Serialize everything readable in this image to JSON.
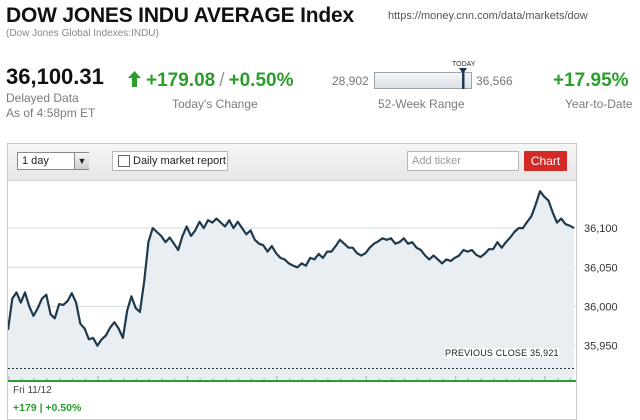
{
  "header": {
    "title": "DOW JONES INDU AVERAGE Index",
    "subtitle": "(Dow Jones Global Indexes:INDU)",
    "url": "https://money.cnn.com/data/markets/dow"
  },
  "quote": {
    "price": "36,100.31",
    "delayed": "Delayed Data",
    "as_of": "As of 4:58pm ET",
    "change": "+179.08",
    "change_pct": "+0.50%",
    "change_label": "Today's Change",
    "range_low": "28,902",
    "range_high": "36,566",
    "range_today_marker": "TODAY",
    "range_label": "52-Week Range",
    "ytd": "+17.95%",
    "ytd_label": "Year-to-Date"
  },
  "toolbar": {
    "period": "1 day",
    "daily_report": "Daily market report",
    "ticker_placeholder": "Add ticker",
    "chart_button": "Chart"
  },
  "chart_footer": {
    "date": "Fri 11/12",
    "change": "+179 | +0.50%"
  },
  "colors": {
    "up": "#2a9d2a",
    "line": "#1f3a4d",
    "fill": "#e9eef3",
    "button": "#d42a26"
  },
  "chart_data": {
    "type": "area",
    "y_ticks": [
      "36,100",
      "36,050",
      "36,000",
      "35,950"
    ],
    "ylim": [
      35905,
      36160
    ],
    "previous_close_label": "PREVIOUS CLOSE 35,921",
    "previous_close": 35921,
    "values": [
      35970,
      36010,
      36018,
      36005,
      36018,
      36000,
      35988,
      35998,
      36010,
      36015,
      35990,
      35985,
      36003,
      36002,
      36007,
      36017,
      36005,
      35978,
      35972,
      35958,
      35960,
      35950,
      35958,
      35963,
      35973,
      35980,
      35972,
      35960,
      35995,
      36013,
      35998,
      35993,
      36032,
      36082,
      36100,
      36095,
      36090,
      36082,
      36088,
      36080,
      36072,
      36090,
      36102,
      36090,
      36097,
      36108,
      36100,
      36110,
      36107,
      36112,
      36107,
      36102,
      36110,
      36100,
      36108,
      36100,
      36092,
      36097,
      36085,
      36080,
      36078,
      36070,
      36077,
      36068,
      36062,
      36060,
      36055,
      36052,
      36050,
      36055,
      36052,
      36062,
      36060,
      36067,
      36062,
      36070,
      36070,
      36077,
      36085,
      36080,
      36075,
      36075,
      36068,
      36065,
      36068,
      36075,
      36080,
      36083,
      36087,
      36085,
      36087,
      36080,
      36082,
      36087,
      36080,
      36082,
      36075,
      36072,
      36065,
      36060,
      36065,
      36060,
      36055,
      36060,
      36058,
      36062,
      36065,
      36072,
      36070,
      36072,
      36066,
      36063,
      36067,
      36073,
      36073,
      36082,
      36075,
      36082,
      36088,
      36095,
      36100,
      36100,
      36108,
      36115,
      36130,
      36147,
      36140,
      36135,
      36120,
      36107,
      36112,
      36105,
      36103,
      36100
    ]
  }
}
